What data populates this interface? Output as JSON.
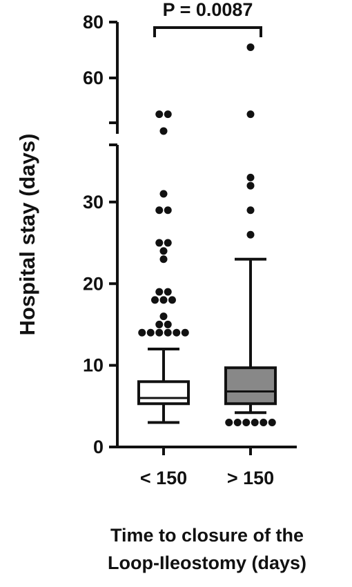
{
  "chart_data": {
    "type": "box",
    "y_label": "Hospital stay (days)",
    "x_label": [
      "Time to closure of the",
      "Loop-Ileostomy (days)"
    ],
    "annotation": "P = 0.0087",
    "segments": [
      {
        "ylim": [
          0,
          37
        ],
        "yticks": [
          0,
          10,
          20,
          30
        ]
      },
      {
        "ylim": [
          40,
          80
        ],
        "yticks": [
          60,
          80
        ]
      }
    ],
    "categories": [
      "< 150",
      "> 150"
    ],
    "boxes": [
      {
        "color": "#ffffff",
        "min": 3,
        "q1": 5.3,
        "median": 6,
        "q3": 8,
        "max": 12,
        "outliers": [
          14,
          14,
          14,
          14,
          14,
          14,
          15,
          15,
          16,
          18,
          18,
          18,
          19,
          19,
          23,
          24,
          25,
          25,
          29,
          29,
          31,
          41,
          47,
          47
        ]
      },
      {
        "color": "#888888",
        "min": 4.2,
        "q1": 5.3,
        "median": 6.8,
        "q3": 9.7,
        "max": 23,
        "outliers": [
          3,
          3,
          3,
          3,
          3,
          3,
          26,
          29,
          32,
          33,
          47,
          71
        ]
      }
    ]
  }
}
